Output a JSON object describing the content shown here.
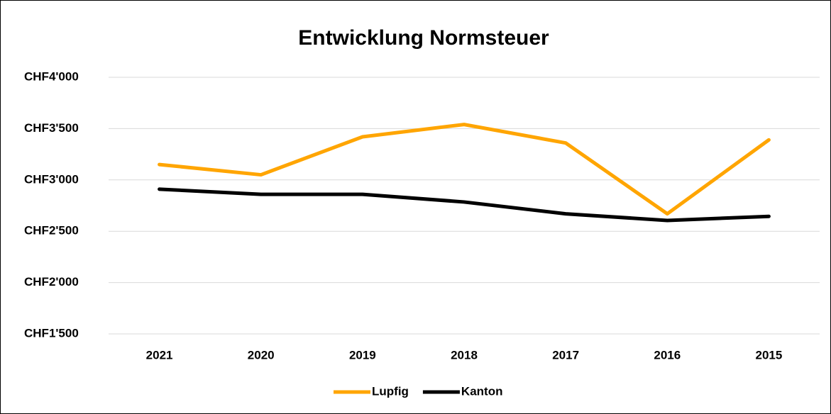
{
  "chart_data": {
    "type": "line",
    "title": "Entwicklung Normsteuer",
    "categories": [
      "2021",
      "2020",
      "2019",
      "2018",
      "2017",
      "2016",
      "2015"
    ],
    "series": [
      {
        "name": "Lupfig",
        "color": "#ffa500",
        "values": [
          3150,
          3050,
          3420,
          3540,
          3360,
          2670,
          3390
        ]
      },
      {
        "name": "Kanton",
        "color": "#000000",
        "values": [
          2910,
          2860,
          2860,
          2785,
          2670,
          2605,
          2645
        ]
      }
    ],
    "ylim": [
      1500,
      4000
    ],
    "yticks": [
      {
        "value": 1500,
        "label": "CHF1'500"
      },
      {
        "value": 2000,
        "label": "CHF2'000"
      },
      {
        "value": 2500,
        "label": "CHF2'500"
      },
      {
        "value": 3000,
        "label": "CHF3'000"
      },
      {
        "value": 3500,
        "label": "CHF3'500"
      },
      {
        "value": 4000,
        "label": "CHF4'000"
      }
    ],
    "grid": true,
    "legend": "bottom"
  }
}
